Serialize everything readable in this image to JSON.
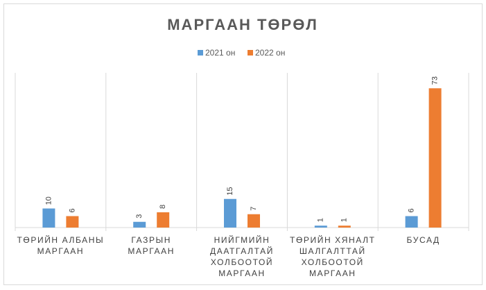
{
  "chart_data": {
    "type": "bar",
    "title": "МАРГААН ТӨРӨЛ",
    "categories": [
      "ТӨРИЙН АЛБАНЫ МАРГААН",
      "ГАЗРЫН МАРГААН",
      "НИЙГМИЙН ДААТГАЛТАЙ ХОЛБООТОЙ МАРГААН",
      "ТӨРИЙН ХЯНАЛТ ШАЛГАЛТТАЙ ХОЛБООТОЙ МАРГААН",
      "БУСАД"
    ],
    "series": [
      {
        "name": "2021 он",
        "color": "#5b9bd5",
        "values": [
          10,
          3,
          15,
          1,
          6
        ]
      },
      {
        "name": "2022 он",
        "color": "#ed7d31",
        "values": [
          6,
          8,
          7,
          1,
          73
        ]
      }
    ],
    "ylim": [
      0,
      80
    ],
    "legend": "top",
    "data_labels": true
  }
}
